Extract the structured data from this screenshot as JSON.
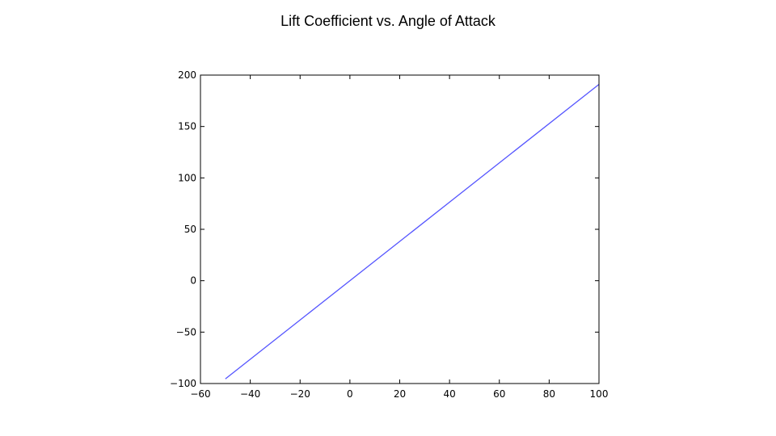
{
  "title": "Lift Coefficient vs. Angle of Attack",
  "chart_data": {
    "type": "line",
    "title": "Lift Coefficient vs. Angle of Attack",
    "xlabel": "",
    "ylabel": "",
    "xlim": [
      -60,
      100
    ],
    "ylim": [
      -100,
      200
    ],
    "xticks": [
      -60,
      -40,
      -20,
      0,
      20,
      40,
      60,
      80,
      100
    ],
    "yticks": [
      -100,
      -50,
      0,
      50,
      100,
      150,
      200
    ],
    "xtick_labels": [
      "−60",
      "−40",
      "−20",
      "0",
      "20",
      "40",
      "60",
      "80",
      "100"
    ],
    "ytick_labels": [
      "−100",
      "−50",
      "0",
      "50",
      "100",
      "150",
      "200"
    ],
    "grid": false,
    "series": [
      {
        "color": "#5555ff",
        "x": [
          -50,
          100
        ],
        "y": [
          -95.5,
          191
        ]
      }
    ]
  }
}
